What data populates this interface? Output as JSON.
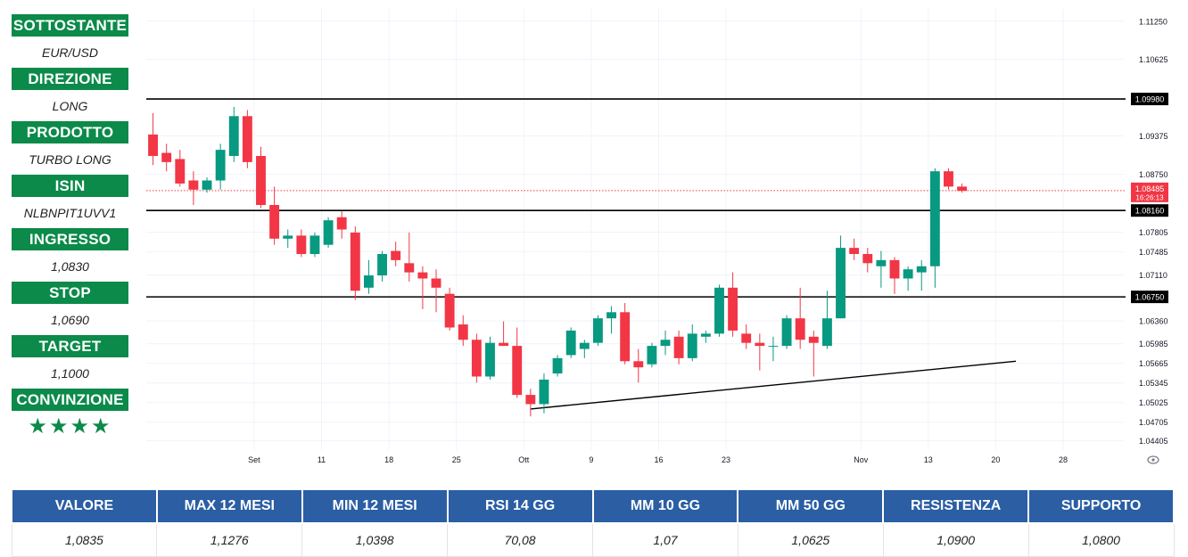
{
  "sidebar": {
    "items": [
      {
        "label": "SOTTOSTANTE",
        "value": "EUR/USD"
      },
      {
        "label": "DIREZIONE",
        "value": "LONG"
      },
      {
        "label": "PRODOTTO",
        "value": "TURBO LONG"
      },
      {
        "label": "ISIN",
        "value": "NLBNPIT1UVV1"
      },
      {
        "label": "INGRESSO",
        "value": "1,0830"
      },
      {
        "label": "STOP",
        "value": "1,0690"
      },
      {
        "label": "TARGET",
        "value": "1,1000"
      },
      {
        "label": "CONVINZIONE",
        "value": "★★★★"
      }
    ]
  },
  "table": {
    "headers": [
      "VALORE",
      "MAX 12 MESI",
      "MIN 12 MESI",
      "RSI 14 GG",
      "MM 10 GG",
      "MM 50 GG",
      "RESISTENZA",
      "SUPPORTO"
    ],
    "values": [
      "1,0835",
      "1,1276",
      "1,0398",
      "70,08",
      "1,07",
      "1,0625",
      "1,0900",
      "1,0800"
    ]
  },
  "chart_data": {
    "type": "candlestick",
    "y_ticks": [
      "1.11250",
      "1.10625",
      "1.09375",
      "1.08750",
      "1.07805",
      "1.07485",
      "1.07110",
      "1.06360",
      "1.05985",
      "1.05665",
      "1.05345",
      "1.05025",
      "1.04705",
      "1.04405"
    ],
    "x_ticks": [
      {
        "label": "Set",
        "bar": 7.5
      },
      {
        "label": "11",
        "bar": 12.5
      },
      {
        "label": "18",
        "bar": 17.5
      },
      {
        "label": "25",
        "bar": 22.5
      },
      {
        "label": "Ott",
        "bar": 27.5
      },
      {
        "label": "9",
        "bar": 32.5
      },
      {
        "label": "16",
        "bar": 37.5
      },
      {
        "label": "23",
        "bar": 42.5
      },
      {
        "label": "Nov",
        "bar": 52.5
      },
      {
        "label": "13",
        "bar": 57.5
      },
      {
        "label": "20",
        "bar": 62.5
      },
      {
        "label": "28",
        "bar": 67.5
      }
    ],
    "ylim": [
      1.0425,
      1.1145
    ],
    "xlim": [
      -0.5,
      72
    ],
    "candles": [
      [
        1.094,
        1.0975,
        1.089,
        1.0905
      ],
      [
        1.091,
        1.0925,
        1.088,
        1.0895
      ],
      [
        1.09,
        1.0915,
        1.0855,
        1.086
      ],
      [
        1.0865,
        1.088,
        1.0825,
        1.085
      ],
      [
        1.085,
        1.087,
        1.0845,
        1.0865
      ],
      [
        1.0865,
        1.0925,
        1.085,
        1.0915
      ],
      [
        1.0905,
        1.0985,
        1.0895,
        1.097
      ],
      [
        1.097,
        1.098,
        1.0885,
        1.0895
      ],
      [
        1.0905,
        1.092,
        1.082,
        1.0825
      ],
      [
        1.0825,
        1.0855,
        1.076,
        1.077
      ],
      [
        1.077,
        1.0785,
        1.0755,
        1.0775
      ],
      [
        1.0775,
        1.0785,
        1.074,
        1.0745
      ],
      [
        1.0745,
        1.078,
        1.074,
        1.0775
      ],
      [
        1.076,
        1.0805,
        1.0755,
        1.08
      ],
      [
        1.0805,
        1.0815,
        1.077,
        1.0785
      ],
      [
        1.078,
        1.079,
        1.067,
        1.0685
      ],
      [
        1.069,
        1.0735,
        1.068,
        1.071
      ],
      [
        1.071,
        1.075,
        1.07,
        1.0745
      ],
      [
        1.075,
        1.0765,
        1.0725,
        1.0735
      ],
      [
        1.073,
        1.078,
        1.07,
        1.0715
      ],
      [
        1.0715,
        1.0725,
        1.0655,
        1.0705
      ],
      [
        1.0705,
        1.072,
        1.065,
        1.069
      ],
      [
        1.068,
        1.069,
        1.062,
        1.0625
      ],
      [
        1.063,
        1.0645,
        1.0595,
        1.0605
      ],
      [
        1.0605,
        1.0615,
        1.0535,
        1.0545
      ],
      [
        1.0545,
        1.061,
        1.054,
        1.06
      ],
      [
        1.06,
        1.0635,
        1.0595,
        1.0595
      ],
      [
        1.0595,
        1.0625,
        1.051,
        1.0515
      ],
      [
        1.0515,
        1.0525,
        1.048,
        1.05
      ],
      [
        1.05,
        1.055,
        1.0485,
        1.054
      ],
      [
        1.055,
        1.058,
        1.0545,
        1.0575
      ],
      [
        1.058,
        1.0625,
        1.0575,
        1.062
      ],
      [
        1.059,
        1.0605,
        1.0575,
        1.06
      ],
      [
        1.06,
        1.0645,
        1.0595,
        1.064
      ],
      [
        1.064,
        1.066,
        1.0615,
        1.065
      ],
      [
        1.065,
        1.0665,
        1.0565,
        1.057
      ],
      [
        1.057,
        1.059,
        1.0535,
        1.056
      ],
      [
        1.0565,
        1.06,
        1.056,
        1.0595
      ],
      [
        1.0595,
        1.062,
        1.058,
        1.0605
      ],
      [
        1.061,
        1.062,
        1.0565,
        1.0575
      ],
      [
        1.0575,
        1.063,
        1.057,
        1.0615
      ],
      [
        1.061,
        1.062,
        1.06,
        1.0615
      ],
      [
        1.0615,
        1.0695,
        1.061,
        1.069
      ],
      [
        1.069,
        1.0715,
        1.061,
        1.062
      ],
      [
        1.0615,
        1.063,
        1.059,
        1.06
      ],
      [
        1.06,
        1.0615,
        1.0555,
        1.0595
      ],
      [
        1.0595,
        1.061,
        1.057,
        1.0595
      ],
      [
        1.0595,
        1.0645,
        1.059,
        1.064
      ],
      [
        1.064,
        1.069,
        1.059,
        1.0605
      ],
      [
        1.061,
        1.062,
        1.0545,
        1.06
      ],
      [
        1.0595,
        1.0685,
        1.059,
        1.064
      ],
      [
        1.064,
        1.0775,
        1.064,
        1.0755
      ],
      [
        1.0755,
        1.077,
        1.0735,
        1.0745
      ],
      [
        1.0745,
        1.0755,
        1.0715,
        1.073
      ],
      [
        1.0725,
        1.075,
        1.069,
        1.0735
      ],
      [
        1.0735,
        1.074,
        1.068,
        1.0705
      ],
      [
        1.0705,
        1.0725,
        1.0685,
        1.072
      ],
      [
        1.0715,
        1.0735,
        1.0685,
        1.0725
      ],
      [
        1.0725,
        1.0885,
        1.069,
        1.088
      ],
      [
        1.088,
        1.0885,
        1.085,
        1.0855
      ],
      [
        1.0855,
        1.086,
        1.0845,
        1.0848
      ]
    ],
    "horizontal_lines": [
      {
        "value": 1.0998,
        "label": "1.09980"
      },
      {
        "value": 1.0816,
        "label": "1.08160"
      },
      {
        "value": 1.0675,
        "label": "1.06750"
      }
    ],
    "current_price": {
      "value": 1.08485,
      "label": "1.08485",
      "countdown": "16:26:13"
    },
    "trendline": {
      "start": {
        "bar": 28,
        "value": 1.0492
      },
      "end": {
        "bar": 64,
        "value": 1.057
      }
    },
    "colors": {
      "up": "#089981",
      "down": "#f23645",
      "level_line": "#000000",
      "current_price": "#f23645",
      "grid": "#f0f3fa"
    }
  }
}
